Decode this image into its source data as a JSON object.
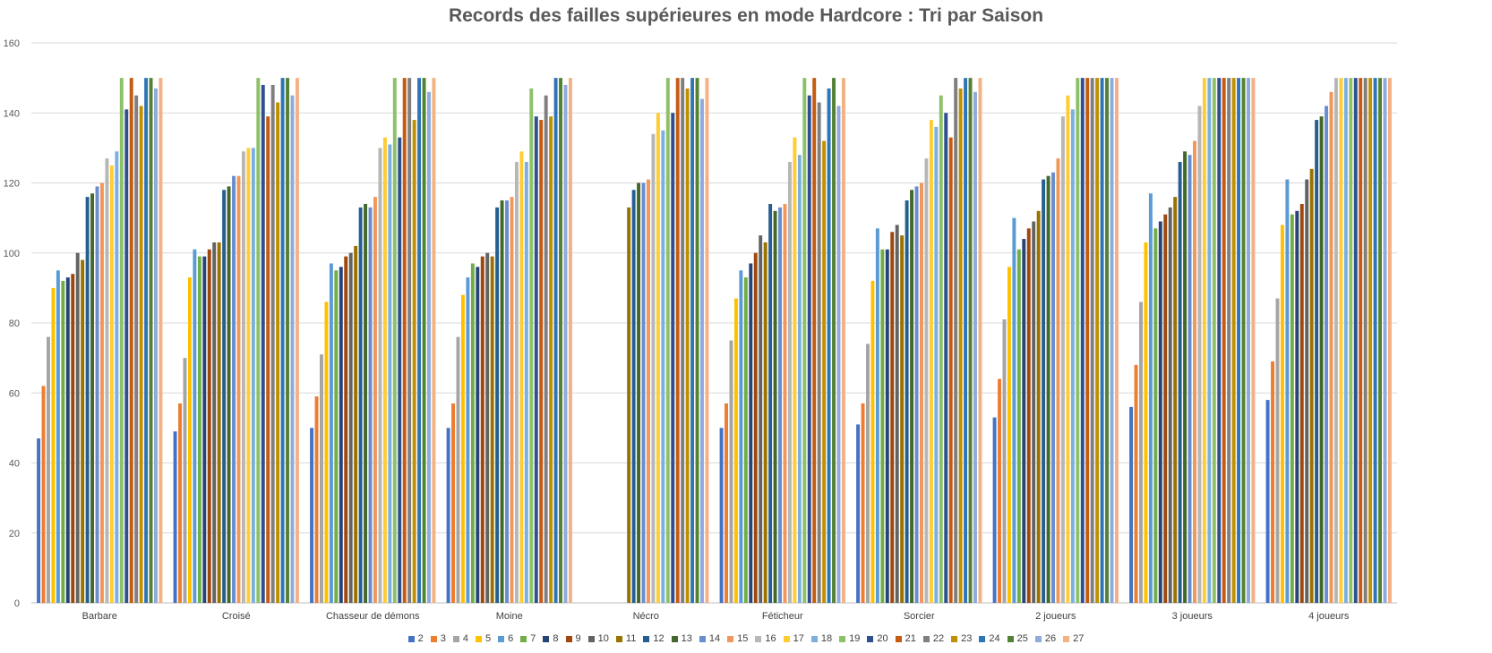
{
  "chart_data": {
    "type": "bar",
    "title": "Records des failles supérieures en mode Hardcore : Tri par Saison",
    "xlabel": "",
    "ylabel": "",
    "ylim": [
      0,
      160
    ],
    "yticks": [
      0,
      20,
      40,
      60,
      80,
      100,
      120,
      140,
      160
    ],
    "grid": true,
    "legend_position": "bottom",
    "categories": [
      "Barbare",
      "Croisé",
      "Chasseur de démons",
      "Moine",
      "Nécro",
      "Féticheur",
      "Sorcier",
      "2 joueurs",
      "3 joueurs",
      "4 joueurs"
    ],
    "series": [
      {
        "name": "2",
        "color": "#4472C4",
        "values": [
          47,
          49,
          50,
          50,
          null,
          50,
          51,
          53,
          56,
          58
        ]
      },
      {
        "name": "3",
        "color": "#ED7D31",
        "values": [
          62,
          57,
          59,
          57,
          null,
          57,
          57,
          64,
          68,
          69
        ]
      },
      {
        "name": "4",
        "color": "#A5A5A5",
        "values": [
          76,
          70,
          71,
          76,
          null,
          75,
          74,
          81,
          86,
          87
        ]
      },
      {
        "name": "5",
        "color": "#FFC000",
        "values": [
          90,
          93,
          86,
          88,
          null,
          87,
          92,
          96,
          103,
          108
        ]
      },
      {
        "name": "6",
        "color": "#5B9BD5",
        "values": [
          95,
          101,
          97,
          93,
          null,
          95,
          107,
          110,
          117,
          121
        ]
      },
      {
        "name": "7",
        "color": "#70AD47",
        "values": [
          92,
          99,
          95,
          97,
          null,
          93,
          101,
          101,
          107,
          111
        ]
      },
      {
        "name": "8",
        "color": "#264478",
        "values": [
          93,
          99,
          96,
          96,
          null,
          97,
          101,
          104,
          109,
          112
        ]
      },
      {
        "name": "9",
        "color": "#9E480E",
        "values": [
          94,
          101,
          99,
          99,
          null,
          100,
          106,
          107,
          111,
          114
        ]
      },
      {
        "name": "10",
        "color": "#636363",
        "values": [
          100,
          103,
          100,
          100,
          null,
          105,
          108,
          109,
          113,
          121
        ]
      },
      {
        "name": "11",
        "color": "#997300",
        "values": [
          98,
          103,
          102,
          99,
          113,
          103,
          105,
          112,
          116,
          124
        ]
      },
      {
        "name": "12",
        "color": "#255E91",
        "values": [
          116,
          118,
          113,
          113,
          118,
          114,
          115,
          121,
          126,
          138
        ]
      },
      {
        "name": "13",
        "color": "#43682B",
        "values": [
          117,
          119,
          114,
          115,
          120,
          112,
          118,
          122,
          129,
          139
        ]
      },
      {
        "name": "14",
        "color": "#698ED0",
        "values": [
          119,
          122,
          113,
          115,
          120,
          113,
          119,
          123,
          128,
          142
        ]
      },
      {
        "name": "15",
        "color": "#F1975A",
        "values": [
          120,
          122,
          116,
          116,
          121,
          114,
          120,
          127,
          132,
          146
        ]
      },
      {
        "name": "16",
        "color": "#B7B7B7",
        "values": [
          127,
          129,
          130,
          126,
          134,
          126,
          127,
          139,
          142,
          150
        ]
      },
      {
        "name": "17",
        "color": "#FFCD33",
        "values": [
          125,
          130,
          133,
          129,
          140,
          133,
          138,
          145,
          150,
          150
        ]
      },
      {
        "name": "18",
        "color": "#7CAFDD",
        "values": [
          129,
          130,
          131,
          126,
          135,
          128,
          136,
          141,
          150,
          150
        ]
      },
      {
        "name": "19",
        "color": "#8CC168",
        "values": [
          150,
          150,
          150,
          147,
          150,
          150,
          145,
          150,
          150,
          150
        ]
      },
      {
        "name": "20",
        "color": "#2F4F8F",
        "values": [
          141,
          148,
          133,
          139,
          140,
          145,
          140,
          150,
          150,
          150
        ]
      },
      {
        "name": "21",
        "color": "#C55A11",
        "values": [
          150,
          139,
          150,
          138,
          150,
          150,
          133,
          150,
          150,
          150
        ]
      },
      {
        "name": "22",
        "color": "#7F7F7F",
        "values": [
          145,
          148,
          150,
          145,
          150,
          143,
          150,
          150,
          150,
          150
        ]
      },
      {
        "name": "23",
        "color": "#BF9000",
        "values": [
          142,
          143,
          138,
          139,
          147,
          132,
          147,
          150,
          150,
          150
        ]
      },
      {
        "name": "24",
        "color": "#2E75B6",
        "values": [
          150,
          150,
          150,
          150,
          150,
          147,
          150,
          150,
          150,
          150
        ]
      },
      {
        "name": "25",
        "color": "#548235",
        "values": [
          150,
          150,
          150,
          150,
          150,
          150,
          150,
          150,
          150,
          150
        ]
      },
      {
        "name": "26",
        "color": "#8FAADC",
        "values": [
          147,
          145,
          146,
          148,
          144,
          142,
          146,
          150,
          150,
          150
        ]
      },
      {
        "name": "27",
        "color": "#F4B183",
        "values": [
          150,
          150,
          150,
          150,
          150,
          150,
          150,
          150,
          150,
          150
        ]
      }
    ]
  }
}
